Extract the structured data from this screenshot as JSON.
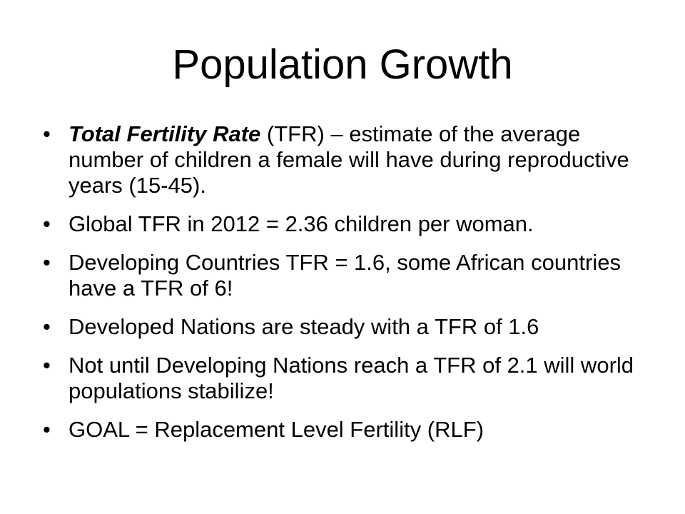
{
  "slide": {
    "title": "Population Growth",
    "bullet_glyph": "•",
    "bullets": [
      {
        "emphasis": "Total Fertility Rate",
        "text": " (TFR) – estimate of the average number of children a female will have during reproductive years (15-45)."
      },
      {
        "emphasis": "",
        "text": "Global TFR in 2012 = 2.36 children per woman."
      },
      {
        "emphasis": "",
        "text": "Developing Countries TFR = 1.6, some African countries have a TFR of 6!"
      },
      {
        "emphasis": "",
        "text": "Developed Nations are steady with a TFR of 1.6"
      },
      {
        "emphasis": "",
        "text": "Not until Developing Nations reach a TFR of 2.1 will world populations stabilize!"
      },
      {
        "emphasis": "",
        "text": "GOAL = Replacement Level Fertility (RLF)"
      }
    ]
  }
}
